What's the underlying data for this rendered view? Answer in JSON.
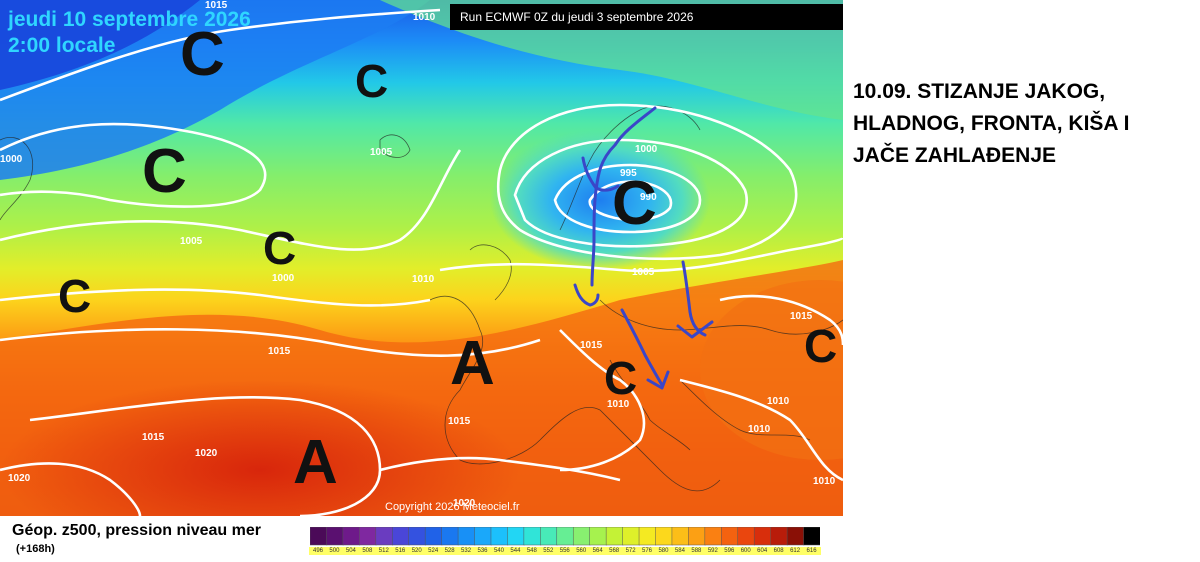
{
  "map": {
    "date_text": "jeudi 10 septembre 2026",
    "time_text": "2:00 locale",
    "run_text": "Run ECMWF 0Z du jeudi 3 septembre 2026",
    "copyright": "Copyright 2026 Meteociel.fr",
    "isobar_labels": [
      "1015",
      "1010",
      "1005",
      "1000",
      "1000",
      "1005",
      "1000",
      "995",
      "990",
      "1005",
      "1010",
      "1015",
      "1015",
      "1015",
      "1020",
      "1020",
      "1015",
      "1010",
      "1010",
      "1015",
      "1010",
      "1010",
      "1020"
    ],
    "pressure_centers": [
      "C",
      "C",
      "C",
      "C",
      "C",
      "C",
      "C",
      "C",
      "A",
      "A"
    ]
  },
  "headline": {
    "line1": "10.09. STIZANJE JAKOG,",
    "line2": "HLADNOG, FRONTA, KIŠA I",
    "line3": "JAČE ZAHLAĐENJE"
  },
  "legend": {
    "title": "Géop. z500, pression niveau mer",
    "forecast_hour": "(+168h)",
    "scale_values": [
      "496",
      "500",
      "504",
      "508",
      "512",
      "516",
      "520",
      "524",
      "528",
      "532",
      "536",
      "540",
      "544",
      "548",
      "552",
      "556",
      "560",
      "564",
      "568",
      "572",
      "576",
      "580",
      "584",
      "588",
      "592",
      "596",
      "600",
      "604",
      "608",
      "612",
      "616"
    ],
    "scale_colors": [
      "#4b0a58",
      "#5a1070",
      "#6e1a8a",
      "#7f28a0",
      "#6a3cc0",
      "#4a46d8",
      "#3452e0",
      "#2062e8",
      "#1a78f0",
      "#1890f6",
      "#1aa8fa",
      "#1cc0fc",
      "#22d6f4",
      "#30e4d8",
      "#48eab8",
      "#66ee94",
      "#88f070",
      "#a6f24e",
      "#c4f236",
      "#def02a",
      "#f4ea22",
      "#fcd81c",
      "#fcbe18",
      "#fca014",
      "#fa8012",
      "#f46210",
      "#ea460e",
      "#d82e0c",
      "#b81c0a",
      "#8a1006",
      "#000000"
    ]
  }
}
